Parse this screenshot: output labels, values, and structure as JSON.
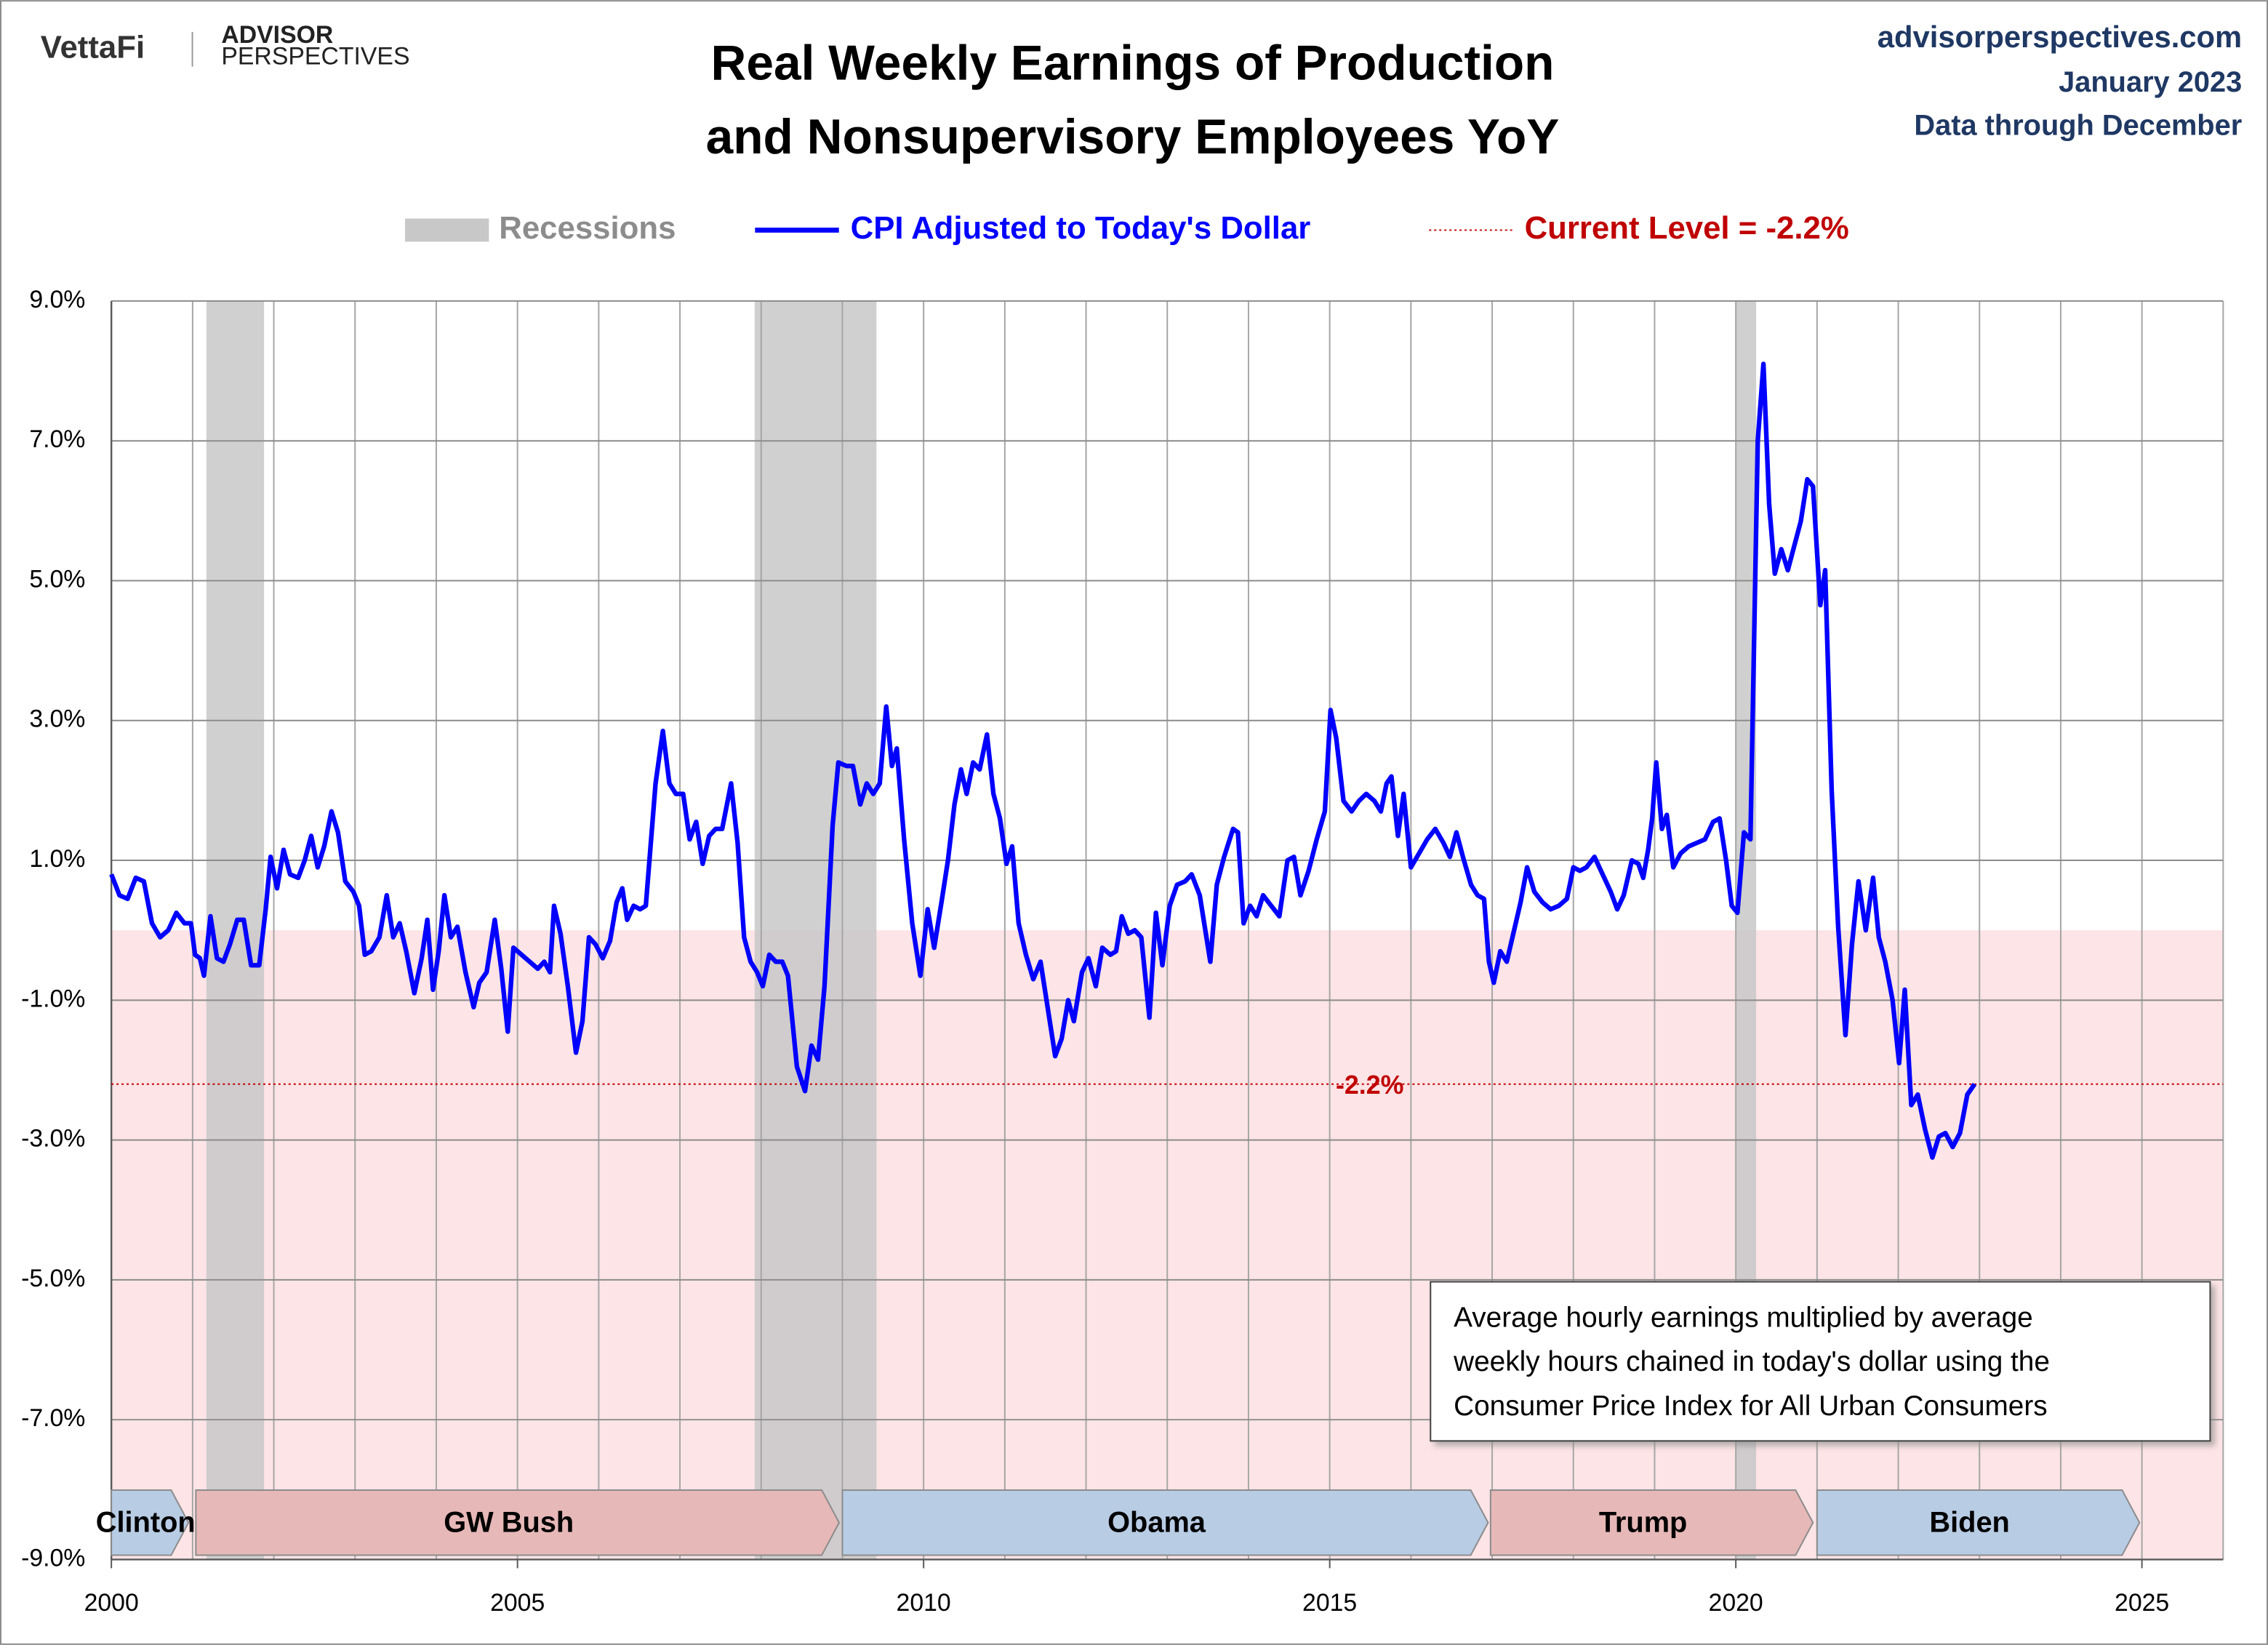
{
  "chart_data": {
    "type": "line",
    "logo": "VettaFi",
    "brand_lines": [
      "ADVISOR",
      "PERSPECTIVES"
    ],
    "source_lines": [
      "advisorperspectives.com",
      "January 2023",
      "Data through December"
    ],
    "title_lines": [
      "Real Weekly Earnings of Production",
      "and Nonsupervisory Employees YoY"
    ],
    "recession_legend": "Recessions",
    "recession_color": "#c8c8c8",
    "recessions": [
      [
        2001.17,
        2001.88
      ],
      [
        2007.92,
        2009.42
      ],
      [
        2020.0,
        2020.25
      ]
    ],
    "negative_shading": "#fde4e6",
    "grid": true,
    "xlim": [
      2000,
      2026
    ],
    "xticks": [
      2000,
      2005,
      2010,
      2015,
      2020,
      2025
    ],
    "xminorticks": [
      2001,
      2002,
      2003,
      2004,
      2006,
      2007,
      2008,
      2009,
      2011,
      2012,
      2013,
      2014,
      2016,
      2017,
      2018,
      2019,
      2021,
      2022,
      2023,
      2024,
      2026
    ],
    "ylim": [
      -9,
      9
    ],
    "yticks": [
      {
        "value": 9,
        "label": "9.0%"
      },
      {
        "value": 7,
        "label": "7.0%"
      },
      {
        "value": 5,
        "label": "5.0%"
      },
      {
        "value": 3,
        "label": "3.0%"
      },
      {
        "value": 1,
        "label": "1.0%"
      },
      {
        "value": -1,
        "label": "-1.0%"
      },
      {
        "value": -3,
        "label": "-3.0%"
      },
      {
        "value": -5,
        "label": "-5.0%"
      },
      {
        "value": -7,
        "label": "-7.0%"
      },
      {
        "value": -9,
        "label": "-9.0%"
      }
    ],
    "x": [
      2000.0,
      2000.1,
      2000.2,
      2000.3,
      2000.4,
      2000.5,
      2000.6,
      2000.7,
      2000.8,
      2000.9,
      2000.98,
      2001.03,
      2001.09,
      2001.14,
      2001.22,
      2001.3,
      2001.38,
      2001.46,
      2001.55,
      2001.63,
      2001.72,
      2001.82,
      2001.9,
      2001.96,
      2002.04,
      2002.12,
      2002.2,
      2002.3,
      2002.38,
      2002.46,
      2002.54,
      2002.62,
      2002.71,
      2002.79,
      2002.88,
      2002.98,
      2003.05,
      2003.12,
      2003.2,
      2003.3,
      2003.39,
      2003.47,
      2003.55,
      2003.63,
      2003.73,
      2003.82,
      2003.89,
      2003.96,
      2004.03,
      2004.1,
      2004.18,
      2004.26,
      2004.36,
      2004.46,
      2004.53,
      2004.62,
      2004.72,
      2004.8,
      2004.88,
      2004.95,
      2005.05,
      2005.15,
      2005.25,
      2005.33,
      2005.4,
      2005.45,
      2005.53,
      2005.62,
      2005.72,
      2005.8,
      2005.88,
      2005.96,
      2006.05,
      2006.14,
      2006.22,
      2006.29,
      2006.35,
      2006.43,
      2006.51,
      2006.58,
      2006.7,
      2006.79,
      2006.87,
      2006.95,
      2007.04,
      2007.12,
      2007.2,
      2007.28,
      2007.36,
      2007.44,
      2007.52,
      2007.63,
      2007.71,
      2007.79,
      2007.87,
      2007.95,
      2008.02,
      2008.1,
      2008.18,
      2008.26,
      2008.33,
      2008.44,
      2008.54,
      2008.62,
      2008.7,
      2008.78,
      2008.88,
      2008.95,
      2009.05,
      2009.13,
      2009.22,
      2009.3,
      2009.38,
      2009.46,
      2009.54,
      2009.61,
      2009.67,
      2009.76,
      2009.86,
      2009.96,
      2010.05,
      2010.13,
      2010.22,
      2010.3,
      2010.38,
      2010.46,
      2010.53,
      2010.61,
      2010.69,
      2010.78,
      2010.86,
      2010.94,
      2011.02,
      2011.09,
      2011.17,
      2011.26,
      2011.35,
      2011.44,
      2011.62,
      2011.7,
      2011.78,
      2011.85,
      2011.95,
      2012.03,
      2012.12,
      2012.2,
      2012.3,
      2012.37,
      2012.44,
      2012.52,
      2012.6,
      2012.68,
      2012.78,
      2012.86,
      2012.94,
      2013.03,
      2013.12,
      2013.22,
      2013.3,
      2013.4,
      2013.53,
      2013.61,
      2013.7,
      2013.81,
      2013.87,
      2013.94,
      2014.02,
      2014.1,
      2014.18,
      2014.28,
      2014.38,
      2014.48,
      2014.56,
      2014.64,
      2014.74,
      2014.84,
      2014.94,
      2015.01,
      2015.08,
      2015.17,
      2015.27,
      2015.36,
      2015.45,
      2015.55,
      2015.63,
      2015.7,
      2015.76,
      2015.84,
      2015.91,
      2016.0,
      2016.1,
      2016.2,
      2016.3,
      2016.4,
      2016.48,
      2016.56,
      2016.64,
      2016.74,
      2016.82,
      2016.9,
      2016.96,
      2017.02,
      2017.1,
      2017.18,
      2017.26,
      2017.35,
      2017.43,
      2017.52,
      2017.62,
      2017.72,
      2017.82,
      2017.92,
      2018.0,
      2018.08,
      2018.16,
      2018.26,
      2018.36,
      2018.46,
      2018.54,
      2018.62,
      2018.72,
      2018.8,
      2018.86,
      2018.92,
      2018.97,
      2019.02,
      2019.09,
      2019.15,
      2019.23,
      2019.32,
      2019.42,
      2019.52,
      2019.62,
      2019.72,
      2019.8,
      2019.88,
      2019.95,
      2020.02,
      2020.1,
      2020.18,
      2020.27,
      2020.34,
      2020.41,
      2020.48,
      2020.56,
      2020.64,
      2020.72,
      2020.8,
      2020.88,
      2020.95,
      2021.04,
      2021.1,
      2021.18,
      2021.26,
      2021.35,
      2021.43,
      2021.51,
      2021.6,
      2021.69,
      2021.76,
      2021.84,
      2021.93,
      2022.01,
      2022.08,
      2022.16,
      2022.24,
      2022.33,
      2022.42,
      2022.5,
      2022.58,
      2022.67,
      2022.76,
      2022.85,
      2022.94
    ],
    "series": [
      {
        "name": "CPI Adjusted to Today's Dollar",
        "color": "#0000ff",
        "values": [
          0.8,
          0.5,
          0.45,
          0.75,
          0.7,
          0.1,
          -0.1,
          0.0,
          0.25,
          0.1,
          0.1,
          -0.35,
          -0.4,
          -0.65,
          0.2,
          -0.4,
          -0.45,
          -0.2,
          0.15,
          0.15,
          -0.5,
          -0.5,
          0.3,
          1.05,
          0.6,
          1.15,
          0.8,
          0.75,
          1.0,
          1.35,
          0.9,
          1.2,
          1.7,
          1.4,
          0.7,
          0.55,
          0.35,
          -0.35,
          -0.3,
          -0.1,
          0.5,
          -0.1,
          0.1,
          -0.3,
          -0.9,
          -0.4,
          0.15,
          -0.85,
          -0.3,
          0.5,
          -0.1,
          0.05,
          -0.6,
          -1.1,
          -0.75,
          -0.6,
          0.15,
          -0.55,
          -1.45,
          -0.25,
          -0.35,
          -0.45,
          -0.55,
          -0.45,
          -0.6,
          0.35,
          -0.05,
          -0.8,
          -1.75,
          -1.3,
          -0.1,
          -0.2,
          -0.4,
          -0.15,
          0.4,
          0.6,
          0.15,
          0.35,
          0.3,
          0.35,
          2.1,
          2.85,
          2.1,
          1.95,
          1.95,
          1.3,
          1.55,
          0.95,
          1.35,
          1.45,
          1.45,
          2.1,
          1.25,
          -0.1,
          -0.45,
          -0.6,
          -0.8,
          -0.35,
          -0.45,
          -0.45,
          -0.65,
          -1.95,
          -2.3,
          -1.65,
          -1.85,
          -0.8,
          1.5,
          2.4,
          2.35,
          2.35,
          1.8,
          2.1,
          1.95,
          2.1,
          3.2,
          2.35,
          2.6,
          1.3,
          0.1,
          -0.65,
          0.3,
          -0.25,
          0.4,
          1.0,
          1.8,
          2.3,
          1.95,
          2.4,
          2.3,
          2.8,
          1.95,
          1.6,
          0.95,
          1.2,
          0.1,
          -0.35,
          -0.7,
          -0.45,
          -1.8,
          -1.55,
          -1.0,
          -1.3,
          -0.6,
          -0.4,
          -0.8,
          -0.25,
          -0.35,
          -0.3,
          0.2,
          -0.05,
          0.0,
          -0.1,
          -1.25,
          0.25,
          -0.5,
          0.35,
          0.65,
          0.7,
          0.8,
          0.5,
          -0.45,
          0.65,
          1.05,
          1.45,
          1.4,
          0.1,
          0.35,
          0.2,
          0.5,
          0.35,
          0.2,
          1.0,
          1.05,
          0.5,
          0.85,
          1.3,
          1.7,
          3.15,
          2.75,
          1.85,
          1.7,
          1.85,
          1.95,
          1.85,
          1.7,
          2.1,
          2.2,
          1.35,
          1.95,
          0.9,
          1.1,
          1.3,
          1.45,
          1.25,
          1.05,
          1.4,
          1.05,
          0.65,
          0.5,
          0.45,
          -0.45,
          -0.75,
          -0.3,
          -0.45,
          -0.05,
          0.4,
          0.9,
          0.55,
          0.4,
          0.3,
          0.35,
          0.45,
          0.9,
          0.85,
          0.9,
          1.05,
          0.8,
          0.55,
          0.3,
          0.5,
          1.0,
          0.95,
          0.75,
          1.15,
          1.6,
          2.4,
          1.45,
          1.65,
          0.9,
          1.1,
          1.2,
          1.25,
          1.3,
          1.55,
          1.6,
          1.0,
          0.35,
          0.25,
          1.4,
          1.3,
          7.0,
          8.1,
          6.1,
          5.1,
          5.45,
          5.15,
          5.5,
          5.85,
          6.45,
          6.35,
          4.65,
          5.15,
          2.0,
          0.05,
          -1.5,
          -0.2,
          0.7,
          0.0,
          0.75,
          -0.1,
          -0.45,
          -1.0,
          -1.9,
          -0.85,
          -2.5,
          -2.35,
          -2.85,
          -3.25,
          -2.95,
          -2.9,
          -3.1,
          -2.9,
          -2.35,
          -2.2
        ]
      }
    ],
    "current_level": {
      "value": -2.2,
      "label": "-2.2%",
      "legend": "Current Level = -2.2%",
      "color": "#c00000"
    },
    "presidents": [
      {
        "name": "Clinton",
        "start": 2000,
        "end": 2000.95,
        "color": "#b8cce4"
      },
      {
        "name": "GW Bush",
        "start": 2001.04,
        "end": 2008.96,
        "color": "#e6b8b7"
      },
      {
        "name": "Obama",
        "start": 2009.0,
        "end": 2016.95,
        "color": "#b8cce4"
      },
      {
        "name": "Trump",
        "start": 2016.98,
        "end": 2020.95,
        "color": "#e6b8b7"
      },
      {
        "name": "Biden",
        "start": 2021.0,
        "end": 2024.97,
        "color": "#b8cce4"
      }
    ],
    "note_lines": [
      "Average hourly earnings multiplied by average",
      "weekly hours chained in today's dollar using the",
      "Consumer Price Index for All Urban Consumers"
    ]
  }
}
